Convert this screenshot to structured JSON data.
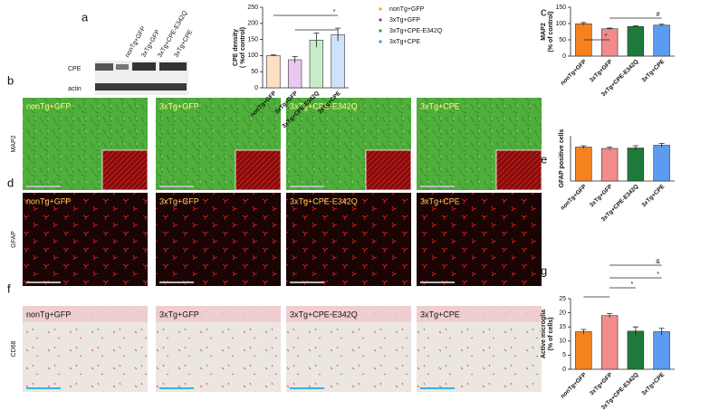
{
  "panel_labels": [
    "a",
    "b",
    "c",
    "d",
    "e",
    "f",
    "g"
  ],
  "blot": {
    "lanes": [
      "nonTg+GFP",
      "3xTg+GFP",
      "3xTg+CPE-E342Q",
      "3xTg+CPE"
    ],
    "rows": [
      "CPE",
      "actin"
    ]
  },
  "image_rows": [
    {
      "stain": "MAP2",
      "panels": [
        "nonTg+GFP",
        "3xTg+GFP",
        "3xTg+CPE-E342Q",
        "3xTg+CPE"
      ]
    },
    {
      "stain": "GFAP",
      "panels": [
        "nonTg+GFP",
        "3xTg+GFP",
        "3xTg+CPE-E342Q",
        "3xTg+CPE"
      ]
    },
    {
      "stain": "CD68",
      "panels": [
        "nonTg+GFP",
        "3xTg+GFP",
        "3xTg+CPE-E342Q",
        "3xTg+CPE"
      ]
    }
  ],
  "chart_data": [
    {
      "type": "bar",
      "y_label": [
        "CPE density",
        "( %of control)"
      ],
      "categories": [
        "nonTg+GFP",
        "3xTg+GFP",
        "3xTg+CPE-E342Q",
        "3xTg+CPE"
      ],
      "values": [
        100,
        87,
        148,
        165
      ],
      "errors": [
        2,
        10,
        22,
        20
      ],
      "colors": [
        "#fde0c2",
        "#e8c8f0",
        "#c8ecc8",
        "#cfe2fb"
      ],
      "ylim": [
        0,
        250
      ],
      "yticks": [
        0,
        50,
        100,
        150,
        200,
        250
      ],
      "legend": {
        "entries": [
          "nonTg+GFP",
          "3xTg+GFP",
          "3xTg+CPE-E342Q",
          "3xTg+CPE"
        ],
        "colors": [
          "#f5a623",
          "#7b3fbf",
          "#2e9e3e",
          "#4a90e2"
        ]
      },
      "annotations": [
        "*"
      ]
    },
    {
      "type": "bar",
      "y_label": [
        "MAP2",
        "(% of control)"
      ],
      "categories": [
        "nonTg+GFP",
        "3xTg+GFP",
        "3xTg+CPE-E342Q",
        "3xTg+CPE"
      ],
      "values": [
        99,
        84,
        91,
        95
      ],
      "errors": [
        4,
        2,
        2,
        3
      ],
      "colors": [
        "#f58220",
        "#f28b8b",
        "#1e7a3a",
        "#5b9cf0"
      ],
      "ylim": [
        0,
        150
      ],
      "yticks": [
        0,
        50,
        100,
        150
      ],
      "annotations": [
        "*",
        "#"
      ]
    },
    {
      "type": "bar",
      "y_label": [
        "GFAP positive cells"
      ],
      "categories": [
        "nonTg+GFP",
        "3xTg+GFP",
        "3xTg+CPE-E342Q",
        "3xTg+CPE"
      ],
      "values": [
        75,
        72,
        73,
        79
      ],
      "errors": [
        3,
        3,
        5,
        4
      ],
      "colors": [
        "#f58220",
        "#f28b8b",
        "#1e7a3a",
        "#5b9cf0"
      ],
      "ylim": [
        0,
        100
      ],
      "annotations": []
    },
    {
      "type": "bar",
      "y_label": [
        "Active microglia",
        "(% of cells)"
      ],
      "categories": [
        "nonTg+GFP",
        "3xTg+GFP",
        "3xTg+CPE-E342Q",
        "3xTg+CPE"
      ],
      "values": [
        13.3,
        19,
        13.5,
        13.3
      ],
      "errors": [
        0.8,
        0.7,
        1.5,
        1.2
      ],
      "colors": [
        "#f58220",
        "#f28b8b",
        "#1e7a3a",
        "#5b9cf0"
      ],
      "ylim": [
        0,
        25
      ],
      "yticks": [
        0,
        5,
        10,
        15,
        20,
        25
      ],
      "annotations": [
        "*",
        "*",
        "&"
      ]
    }
  ]
}
